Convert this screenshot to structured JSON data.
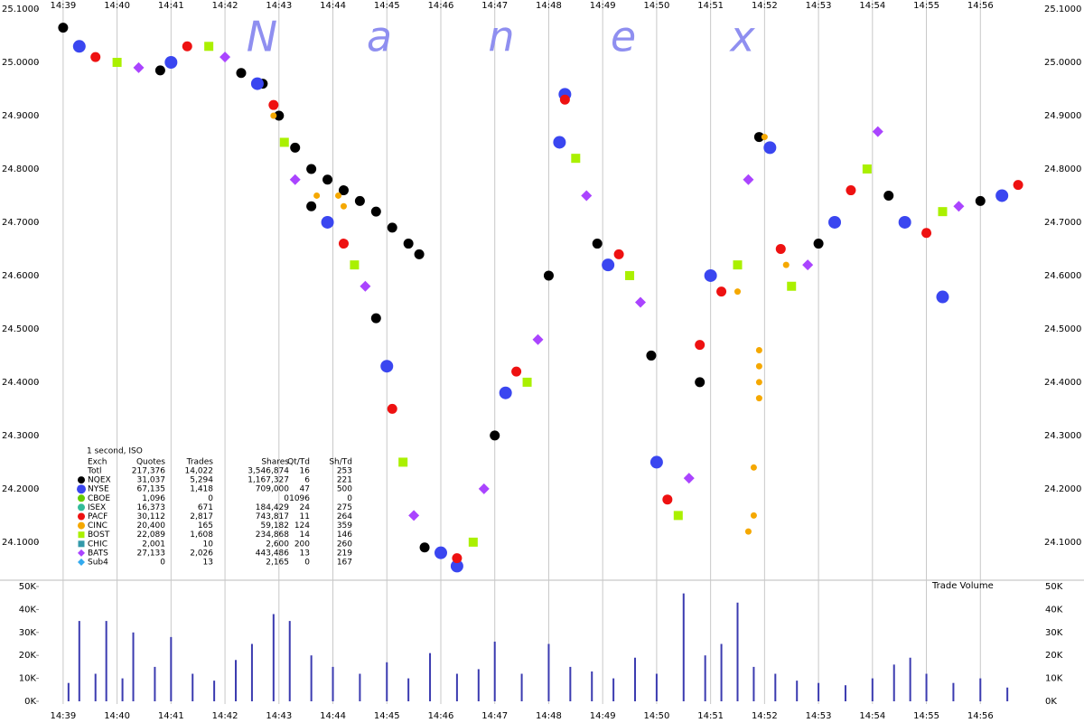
{
  "chart_data": [
    {
      "type": "scatter",
      "watermark": [
        "N",
        "a",
        "n",
        "e",
        "x"
      ],
      "xlim": [
        878.55,
        897.05
      ],
      "ylim": [
        24.032,
        25.1
      ],
      "xticks": [
        {
          "value": 879,
          "label": "14:39"
        },
        {
          "value": 880,
          "label": "14:40"
        },
        {
          "value": 881,
          "label": "14:41"
        },
        {
          "value": 882,
          "label": "14:42"
        },
        {
          "value": 883,
          "label": "14:43"
        },
        {
          "value": 884,
          "label": "14:44"
        },
        {
          "value": 885,
          "label": "14:45"
        },
        {
          "value": 886,
          "label": "14:46"
        },
        {
          "value": 887,
          "label": "14:47"
        },
        {
          "value": 888,
          "label": "14:48"
        },
        {
          "value": 889,
          "label": "14:49"
        },
        {
          "value": 890,
          "label": "14:50"
        },
        {
          "value": 891,
          "label": "14:51"
        },
        {
          "value": 892,
          "label": "14:52"
        },
        {
          "value": 893,
          "label": "14:53"
        },
        {
          "value": 894,
          "label": "14:54"
        },
        {
          "value": 895,
          "label": "14:55"
        },
        {
          "value": 896,
          "label": "14:56"
        }
      ],
      "yticks": [
        {
          "value": 24.1,
          "label": "24.1000"
        },
        {
          "value": 24.2,
          "label": "24.2000"
        },
        {
          "value": 24.3,
          "label": "24.3000"
        },
        {
          "value": 24.4,
          "label": "24.4000"
        },
        {
          "value": 24.5,
          "label": "24.5000"
        },
        {
          "value": 24.6,
          "label": "24.6000"
        },
        {
          "value": 24.7,
          "label": "24.7000"
        },
        {
          "value": 24.8,
          "label": "24.8000"
        },
        {
          "value": 24.9,
          "label": "24.9000"
        },
        {
          "value": 25.0,
          "label": "25.0000"
        },
        {
          "value": 25.1,
          "label": "25.1000"
        }
      ],
      "grid": "x",
      "series": [
        {
          "name": "NQEX",
          "color": "#000000",
          "marker": "circle",
          "x": [
            879.0,
            880.8,
            882.3,
            883.6,
            884.8,
            885.7,
            887.0,
            888.0,
            888.9,
            889.9,
            890.8,
            891.9,
            893.0,
            894.3,
            896.0,
            882.7,
            883.0,
            883.3,
            883.6,
            883.9,
            884.2,
            884.5,
            884.8,
            885.1,
            885.4,
            885.6
          ],
          "values": [
            25.065,
            24.985,
            24.98,
            24.73,
            24.52,
            24.09,
            24.3,
            24.6,
            24.66,
            24.45,
            24.4,
            24.86,
            24.66,
            24.75,
            24.74,
            24.96,
            24.9,
            24.84,
            24.8,
            24.78,
            24.76,
            24.74,
            24.72,
            24.69,
            24.66,
            24.64
          ]
        },
        {
          "name": "NYSE",
          "color": "#3a46f0",
          "marker": "circle-large",
          "x": [
            879.3,
            881.0,
            882.6,
            883.9,
            885.0,
            886.0,
            887.2,
            888.2,
            889.1,
            890.0,
            891.0,
            892.1,
            893.3,
            894.6,
            896.4,
            888.3,
            886.3,
            895.3
          ],
          "values": [
            25.03,
            25.0,
            24.96,
            24.7,
            24.43,
            24.08,
            24.38,
            24.85,
            24.62,
            24.25,
            24.6,
            24.84,
            24.7,
            24.7,
            24.75,
            24.94,
            24.055,
            24.56
          ]
        },
        {
          "name": "PACF",
          "color": "#ee1111",
          "marker": "circle",
          "x": [
            879.6,
            881.3,
            882.9,
            884.2,
            885.1,
            886.3,
            887.4,
            888.3,
            889.3,
            890.2,
            891.2,
            892.3,
            893.6,
            895.0,
            896.7,
            890.8
          ],
          "values": [
            25.01,
            25.03,
            24.92,
            24.66,
            24.35,
            24.07,
            24.42,
            24.93,
            24.64,
            24.18,
            24.57,
            24.65,
            24.76,
            24.68,
            24.77,
            24.47
          ]
        },
        {
          "name": "BOST",
          "color": "#aaf000",
          "marker": "square",
          "x": [
            880.0,
            881.7,
            883.1,
            884.4,
            885.3,
            886.6,
            887.6,
            888.5,
            889.5,
            890.4,
            891.5,
            892.5,
            893.9,
            895.3
          ],
          "values": [
            25.0,
            25.03,
            24.85,
            24.62,
            24.25,
            24.1,
            24.4,
            24.82,
            24.6,
            24.15,
            24.62,
            24.58,
            24.8,
            24.72
          ]
        },
        {
          "name": "BATS",
          "color": "#aa44ff",
          "marker": "diamond",
          "x": [
            880.4,
            882.0,
            883.3,
            884.6,
            885.5,
            886.8,
            887.8,
            888.7,
            889.7,
            890.6,
            891.7,
            892.8,
            894.1,
            895.6
          ],
          "values": [
            24.99,
            25.01,
            24.78,
            24.58,
            24.15,
            24.2,
            24.48,
            24.75,
            24.55,
            24.22,
            24.78,
            24.62,
            24.87,
            24.73
          ]
        },
        {
          "name": "CINC",
          "color": "#f5a800",
          "marker": "circle-small",
          "x": [
            882.9,
            883.7,
            884.1,
            884.2,
            891.5,
            891.9,
            891.9,
            891.9,
            891.9,
            891.8,
            891.8,
            891.7,
            892.0,
            892.4
          ],
          "values": [
            24.9,
            24.75,
            24.75,
            24.73,
            24.57,
            24.46,
            24.43,
            24.4,
            24.37,
            24.24,
            24.15,
            24.12,
            24.86,
            24.62
          ]
        }
      ]
    },
    {
      "type": "bar",
      "title": "Trade Volume",
      "xlim": [
        878.55,
        897.05
      ],
      "ylim": [
        0,
        50000
      ],
      "xticks": [
        {
          "value": 879,
          "label": "14:39"
        },
        {
          "value": 880,
          "label": "14:40"
        },
        {
          "value": 881,
          "label": "14:41"
        },
        {
          "value": 882,
          "label": "14:42"
        },
        {
          "value": 883,
          "label": "14:43"
        },
        {
          "value": 884,
          "label": "14:44"
        },
        {
          "value": 885,
          "label": "14:45"
        },
        {
          "value": 886,
          "label": "14:46"
        },
        {
          "value": 887,
          "label": "14:47"
        },
        {
          "value": 888,
          "label": "14:48"
        },
        {
          "value": 889,
          "label": "14:49"
        },
        {
          "value": 890,
          "label": "14:50"
        },
        {
          "value": 891,
          "label": "14:51"
        },
        {
          "value": 892,
          "label": "14:52"
        },
        {
          "value": 893,
          "label": "14:53"
        },
        {
          "value": 894,
          "label": "14:54"
        },
        {
          "value": 895,
          "label": "14:55"
        },
        {
          "value": 896,
          "label": "14:56"
        }
      ],
      "yticks": [
        {
          "value": 0,
          "label": "0K"
        },
        {
          "value": 10000,
          "label": "10K"
        },
        {
          "value": 20000,
          "label": "20K"
        },
        {
          "value": 30000,
          "label": "30K"
        },
        {
          "value": 40000,
          "label": "40K"
        },
        {
          "value": 50000,
          "label": "50K"
        }
      ],
      "grid": "x",
      "series": [
        {
          "name": "Trade Volume",
          "color": "#3b3bb0",
          "x": [
            879.1,
            879.3,
            879.6,
            879.8,
            880.1,
            880.3,
            880.7,
            881.0,
            881.4,
            881.8,
            882.2,
            882.5,
            882.9,
            883.2,
            883.6,
            884.0,
            884.5,
            885.0,
            885.4,
            885.8,
            886.3,
            886.7,
            887.0,
            887.5,
            888.0,
            888.4,
            888.8,
            889.2,
            889.6,
            890.0,
            890.5,
            890.9,
            891.2,
            891.5,
            891.8,
            892.2,
            892.6,
            893.0,
            893.5,
            894.0,
            894.4,
            894.7,
            895.0,
            895.5,
            896.0,
            896.5
          ],
          "values": [
            8000,
            35000,
            12000,
            35000,
            10000,
            30000,
            15000,
            28000,
            12000,
            9000,
            18000,
            25000,
            38000,
            35000,
            20000,
            15000,
            12000,
            17000,
            10000,
            21000,
            12000,
            14000,
            26000,
            12000,
            25000,
            15000,
            13000,
            10000,
            19000,
            12000,
            47000,
            20000,
            25000,
            43000,
            15000,
            12000,
            9000,
            8000,
            7000,
            10000,
            16000,
            19000,
            12000,
            8000,
            10000,
            6000
          ]
        }
      ]
    }
  ],
  "stats_table": {
    "caption": "1 second, ISO",
    "columns": [
      "Exch",
      "Quotes",
      "Trades",
      "Shares",
      "Qt/Td",
      "Sh/Td"
    ],
    "marker_colors": [
      null,
      "#000000",
      "#3a46f0",
      "#66cc00",
      "#33bb99",
      "#ee1111",
      "#f5a800",
      "#aaf000",
      "#3399aa",
      "#aa44ff",
      "#33aaee"
    ],
    "marker_shapes": [
      null,
      "circle",
      "circle",
      "circle",
      "circle",
      "circle",
      "circle",
      "square",
      "square",
      "diamond",
      "diamond"
    ],
    "rows": [
      [
        "Totl",
        "217,376",
        "14,022",
        "3,546,874",
        "16",
        "253"
      ],
      [
        "NQEX",
        "31,037",
        "5,294",
        "1,167,327",
        "6",
        "221"
      ],
      [
        "NYSE",
        "67,135",
        "1,418",
        "709,000",
        "47",
        "500"
      ],
      [
        "CBOE",
        "1,096",
        "0",
        "0",
        "1096",
        "0"
      ],
      [
        "ISEX",
        "16,373",
        "671",
        "184,429",
        "24",
        "275"
      ],
      [
        "PACF",
        "30,112",
        "2,817",
        "743,817",
        "11",
        "264"
      ],
      [
        "CINC",
        "20,400",
        "165",
        "59,182",
        "124",
        "359"
      ],
      [
        "BOST",
        "22,089",
        "1,608",
        "234,868",
        "14",
        "146"
      ],
      [
        "CHIC",
        "2,001",
        "10",
        "2,600",
        "200",
        "260"
      ],
      [
        "BATS",
        "27,133",
        "2,026",
        "443,486",
        "13",
        "219"
      ],
      [
        "Sub4",
        "0",
        "13",
        "2,165",
        "0",
        "167"
      ]
    ]
  }
}
